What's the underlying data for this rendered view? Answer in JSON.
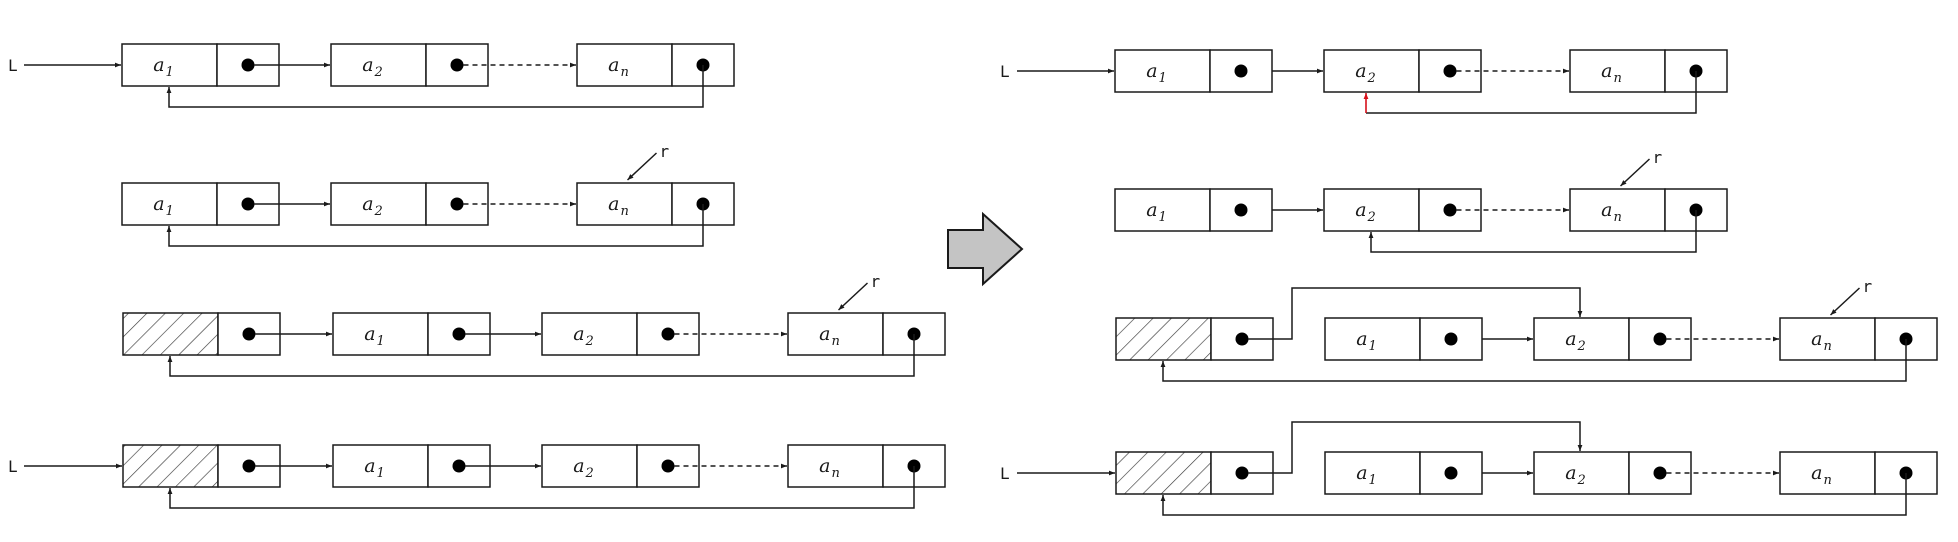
{
  "head_label": "L",
  "tail_label": "r",
  "colors": {
    "line": "#1a1a1a",
    "highlight": "#d6101a",
    "arrow_fill": "#c4c4c4",
    "hatch": "#3a3a3a"
  },
  "icons": {
    "transition": "right-arrow-icon",
    "header_node": "hatched-header-node"
  },
  "left": {
    "rows": [
      {
        "head": true,
        "header": false,
        "tail": false,
        "nodes": [
          {
            "base": "a",
            "sub": "1"
          },
          {
            "base": "a",
            "sub": "2"
          },
          {
            "base": "a",
            "sub": "n"
          }
        ]
      },
      {
        "head": false,
        "header": false,
        "tail": true,
        "nodes": [
          {
            "base": "a",
            "sub": "1"
          },
          {
            "base": "a",
            "sub": "2"
          },
          {
            "base": "a",
            "sub": "n"
          }
        ]
      },
      {
        "head": false,
        "header": true,
        "tail": true,
        "nodes": [
          {
            "base": "a",
            "sub": "1"
          },
          {
            "base": "a",
            "sub": "2"
          },
          {
            "base": "a",
            "sub": "n"
          }
        ]
      },
      {
        "head": true,
        "header": true,
        "tail": false,
        "nodes": [
          {
            "base": "a",
            "sub": "1"
          },
          {
            "base": "a",
            "sub": "2"
          },
          {
            "base": "a",
            "sub": "n"
          }
        ]
      }
    ]
  },
  "right": {
    "rows": [
      {
        "head": true,
        "header": false,
        "tail": false,
        "nodes": [
          {
            "base": "a",
            "sub": "1"
          },
          {
            "base": "a",
            "sub": "2"
          },
          {
            "base": "a",
            "sub": "n"
          }
        ]
      },
      {
        "head": false,
        "header": false,
        "tail": true,
        "nodes": [
          {
            "base": "a",
            "sub": "1"
          },
          {
            "base": "a",
            "sub": "2"
          },
          {
            "base": "a",
            "sub": "n"
          }
        ]
      },
      {
        "head": false,
        "header": true,
        "tail": true,
        "nodes": [
          {
            "base": "a",
            "sub": "1"
          },
          {
            "base": "a",
            "sub": "2"
          },
          {
            "base": "a",
            "sub": "n"
          }
        ]
      },
      {
        "head": true,
        "header": true,
        "tail": false,
        "nodes": [
          {
            "base": "a",
            "sub": "1"
          },
          {
            "base": "a",
            "sub": "2"
          },
          {
            "base": "a",
            "sub": "n"
          }
        ]
      }
    ]
  }
}
